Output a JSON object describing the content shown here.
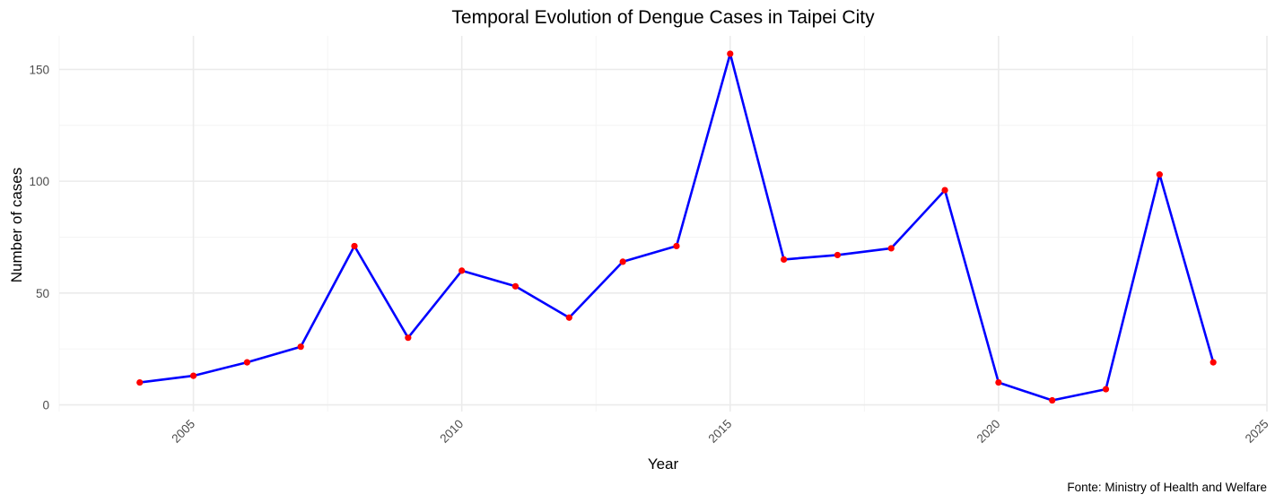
{
  "chart_data": {
    "type": "line",
    "title": "Temporal Evolution of Dengue Cases in Taipei City",
    "xlabel": "Year",
    "ylabel": "Number of cases",
    "caption": "Fonte: Ministry of Health and Welfare",
    "xlim": [
      2002.5,
      2025
    ],
    "ylim": [
      -3,
      165
    ],
    "x_ticks": [
      2005,
      2010,
      2015,
      2020,
      2025
    ],
    "x_minor_ticks": [
      2002.5,
      2007.5,
      2012.5,
      2017.5,
      2022.5
    ],
    "y_ticks": [
      0,
      50,
      100,
      150
    ],
    "y_minor_ticks": [
      25,
      75,
      125
    ],
    "grid": true,
    "x": [
      2004,
      2005,
      2006,
      2007,
      2008,
      2009,
      2010,
      2011,
      2012,
      2013,
      2014,
      2015,
      2016,
      2017,
      2018,
      2019,
      2020,
      2021,
      2022,
      2023,
      2024
    ],
    "series": [
      {
        "values": [
          10,
          13,
          19,
          26,
          71,
          30,
          60,
          53,
          39,
          64,
          71,
          157,
          65,
          67,
          70,
          96,
          10,
          2,
          7,
          103,
          19
        ],
        "line_color": "#0000ff",
        "point_color": "#ff0000"
      }
    ]
  }
}
